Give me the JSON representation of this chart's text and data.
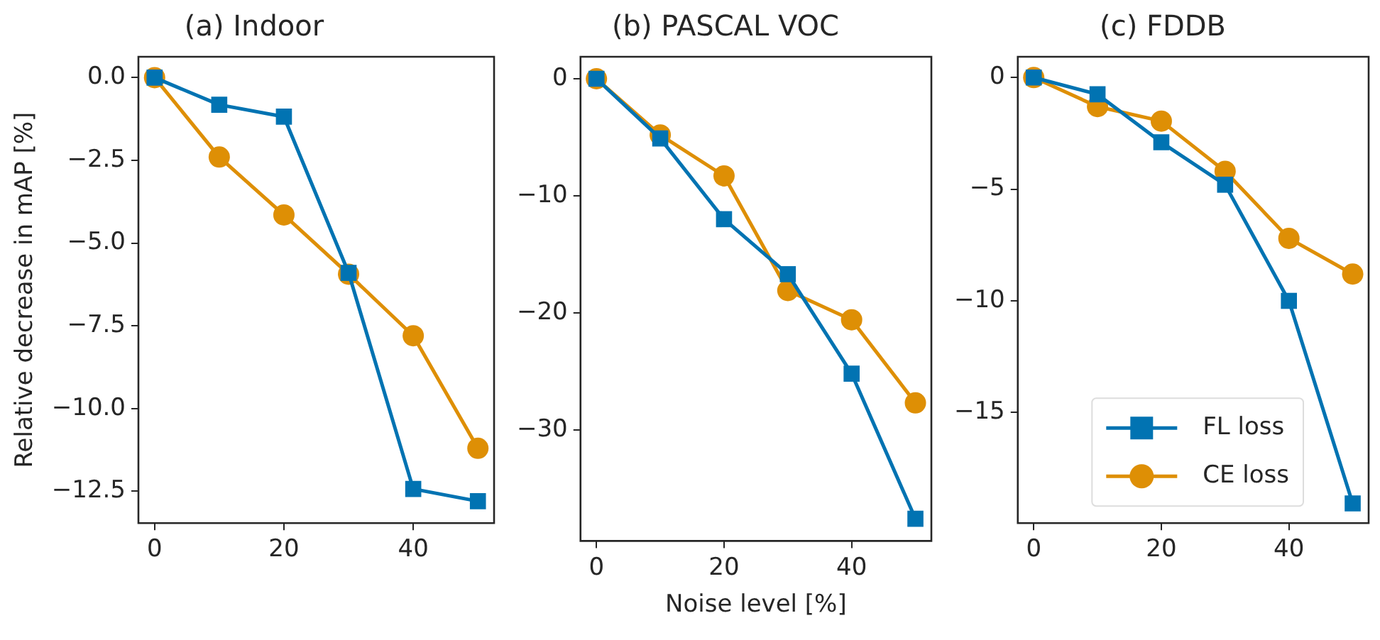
{
  "chart_data": [
    {
      "type": "line",
      "title": "(a) Indoor",
      "ylabel": "Relative decrease in mAP [%]",
      "x": [
        0,
        10,
        20,
        30,
        40,
        50
      ],
      "xlim": [
        -2.5,
        52.5
      ],
      "xticks": [
        0,
        20,
        40
      ],
      "ylim": [
        -13.46,
        0.63
      ],
      "yticks": [
        {
          "value": 0,
          "label": "0.0"
        },
        {
          "value": -2.5,
          "label": "−2.5"
        },
        {
          "value": -5,
          "label": "−5.0"
        },
        {
          "value": -7.5,
          "label": "−7.5"
        },
        {
          "value": -10,
          "label": "−10.0"
        },
        {
          "value": -12.5,
          "label": "−12.5"
        }
      ],
      "grid": false,
      "legend": false,
      "series": [
        {
          "color": "#0173b2",
          "marker": "square",
          "values": [
            0,
            -0.82,
            -1.18,
            -5.9,
            -12.43,
            -12.8
          ]
        },
        {
          "color": "#de8f05",
          "marker": "circle",
          "values": [
            0,
            -2.4,
            -4.15,
            -5.94,
            -7.8,
            -11.2
          ]
        }
      ]
    },
    {
      "type": "line",
      "title": "(b) PASCAL VOC",
      "xlabel": "Noise level [%]",
      "x": [
        0,
        10,
        20,
        30,
        40,
        50
      ],
      "xlim": [
        -2.5,
        52.5
      ],
      "xticks": [
        0,
        20,
        40
      ],
      "ylim": [
        -39.5,
        1.88
      ],
      "yticks": [
        0,
        {
          "value": -10,
          "label": "−10"
        },
        {
          "value": -20,
          "label": "−20"
        },
        {
          "value": -30,
          "label": "−30"
        }
      ],
      "grid": false,
      "legend": false,
      "series": [
        {
          "color": "#0173b2",
          "marker": "square",
          "values": [
            0,
            -5.1,
            -12,
            -16.7,
            -25.2,
            -37.6
          ]
        },
        {
          "color": "#de8f05",
          "marker": "circle",
          "values": [
            0,
            -4.8,
            -8.3,
            -18.1,
            -20.6,
            -27.7
          ]
        }
      ]
    },
    {
      "type": "line",
      "title": "(c) FDDB",
      "x": [
        0,
        10,
        20,
        30,
        40,
        50
      ],
      "xlim": [
        -2.5,
        52.5
      ],
      "xticks": [
        0,
        20,
        40
      ],
      "ylim": [
        -19.95,
        0.93
      ],
      "yticks": [
        0,
        {
          "value": -5,
          "label": "−5"
        },
        {
          "value": -10,
          "label": "−10"
        },
        {
          "value": -15,
          "label": "−15"
        }
      ],
      "grid": false,
      "legend": "bottom right",
      "series": [
        {
          "name": "FL loss",
          "color": "#0173b2",
          "marker": "square",
          "values": [
            0,
            -0.75,
            -2.9,
            -4.8,
            -10,
            -19.07
          ]
        },
        {
          "name": "CE loss",
          "color": "#de8f05",
          "marker": "circle",
          "values": [
            0,
            -1.3,
            -1.95,
            -4.2,
            -7.2,
            -8.8
          ]
        }
      ]
    }
  ]
}
